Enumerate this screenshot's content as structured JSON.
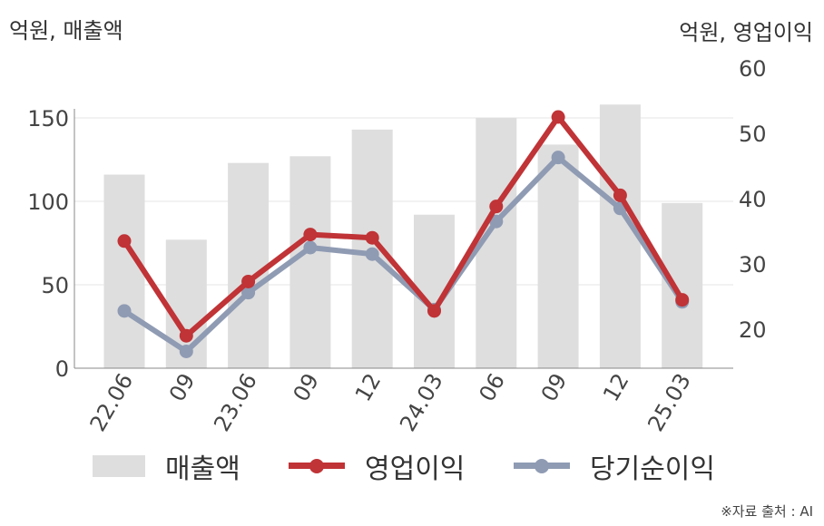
{
  "chart_data": {
    "type": "bar",
    "categories": [
      "22.06",
      "09",
      "23.06",
      "09",
      "12",
      "24.03",
      "06",
      "09",
      "12",
      "25.03"
    ],
    "series": [
      {
        "name": "매출액",
        "type": "bar",
        "axis": "left",
        "color": "#dedede",
        "values": [
          116,
          77,
          123,
          127,
          143,
          92,
          150,
          134,
          158,
          99
        ]
      },
      {
        "name": "영업이익",
        "type": "line",
        "axis": "right",
        "color": "#c03336",
        "values": [
          33.5,
          19,
          27.3,
          34.5,
          34,
          22.8,
          38.8,
          52.5,
          40.5,
          24.5
        ]
      },
      {
        "name": "당기순이익",
        "type": "line",
        "axis": "right",
        "color": "#8f9bb3",
        "values": [
          22.8,
          16.6,
          25.6,
          32.5,
          31.5,
          23,
          36.5,
          46.3,
          38.5,
          24.2
        ]
      }
    ],
    "y_left": {
      "label": "억원, 매출액",
      "ticks": [
        0,
        50,
        100,
        150
      ],
      "range": [
        0,
        175
      ]
    },
    "y_right": {
      "label": "억원, 영업이익",
      "ticks": [
        20,
        30,
        40,
        50,
        60
      ],
      "range": [
        14,
        62
      ]
    },
    "grid": true,
    "legend_position": "bottom",
    "source": "※자료 출처 : AI"
  }
}
